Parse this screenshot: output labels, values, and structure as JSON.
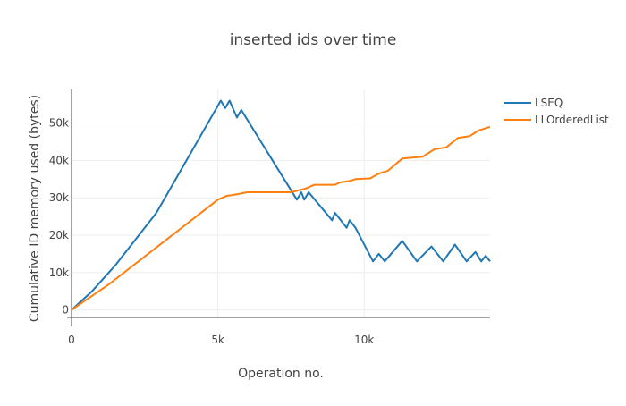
{
  "chart_data": {
    "type": "line",
    "title": "inserted ids over time",
    "xlabel": "Operation no.",
    "ylabel": "Cumulative ID memory used (bytes)",
    "xlim": [
      0,
      14300
    ],
    "ylim": [
      -2000,
      59000
    ],
    "x_ticks": [
      0,
      5000,
      10000
    ],
    "x_tick_labels": [
      "0",
      "5k",
      "10k"
    ],
    "y_ticks": [
      0,
      10000,
      20000,
      30000,
      40000,
      50000
    ],
    "y_tick_labels": [
      "0",
      "10k",
      "20k",
      "30k",
      "40k",
      "50k"
    ],
    "grid": true,
    "legend_position": "top-right",
    "series": [
      {
        "name": "LSEQ",
        "color": "#1f77b4",
        "x": [
          0,
          700,
          1500,
          2900,
          5100,
          5250,
          5400,
          5650,
          5800,
          7700,
          7850,
          7950,
          8100,
          8900,
          9000,
          9100,
          9400,
          9500,
          9700,
          10300,
          10500,
          10700,
          11300,
          11800,
          12300,
          12700,
          13100,
          13500,
          13800,
          14000,
          14150,
          14300
        ],
        "y": [
          0,
          5000,
          12000,
          26000,
          56000,
          54000,
          56000,
          51500,
          53500,
          29500,
          31500,
          29500,
          31500,
          24000,
          26000,
          25000,
          22000,
          24000,
          22000,
          13000,
          15000,
          13000,
          18500,
          13000,
          17000,
          13000,
          17500,
          13000,
          15500,
          13000,
          14500,
          13000
        ]
      },
      {
        "name": "LLOrderedList",
        "color": "#ff7f0e",
        "x": [
          0,
          1300,
          5000,
          5300,
          5700,
          6000,
          7500,
          8000,
          8300,
          9000,
          9200,
          9500,
          9700,
          10200,
          10500,
          10800,
          11300,
          12000,
          12400,
          12800,
          13200,
          13600,
          13900,
          14100,
          14300
        ],
        "y": [
          0,
          7000,
          29500,
          30500,
          31000,
          31500,
          31500,
          32500,
          33500,
          33500,
          34200,
          34500,
          35000,
          35200,
          36500,
          37200,
          40500,
          41000,
          43000,
          43500,
          46000,
          46500,
          48000,
          48500,
          49000
        ]
      }
    ]
  }
}
